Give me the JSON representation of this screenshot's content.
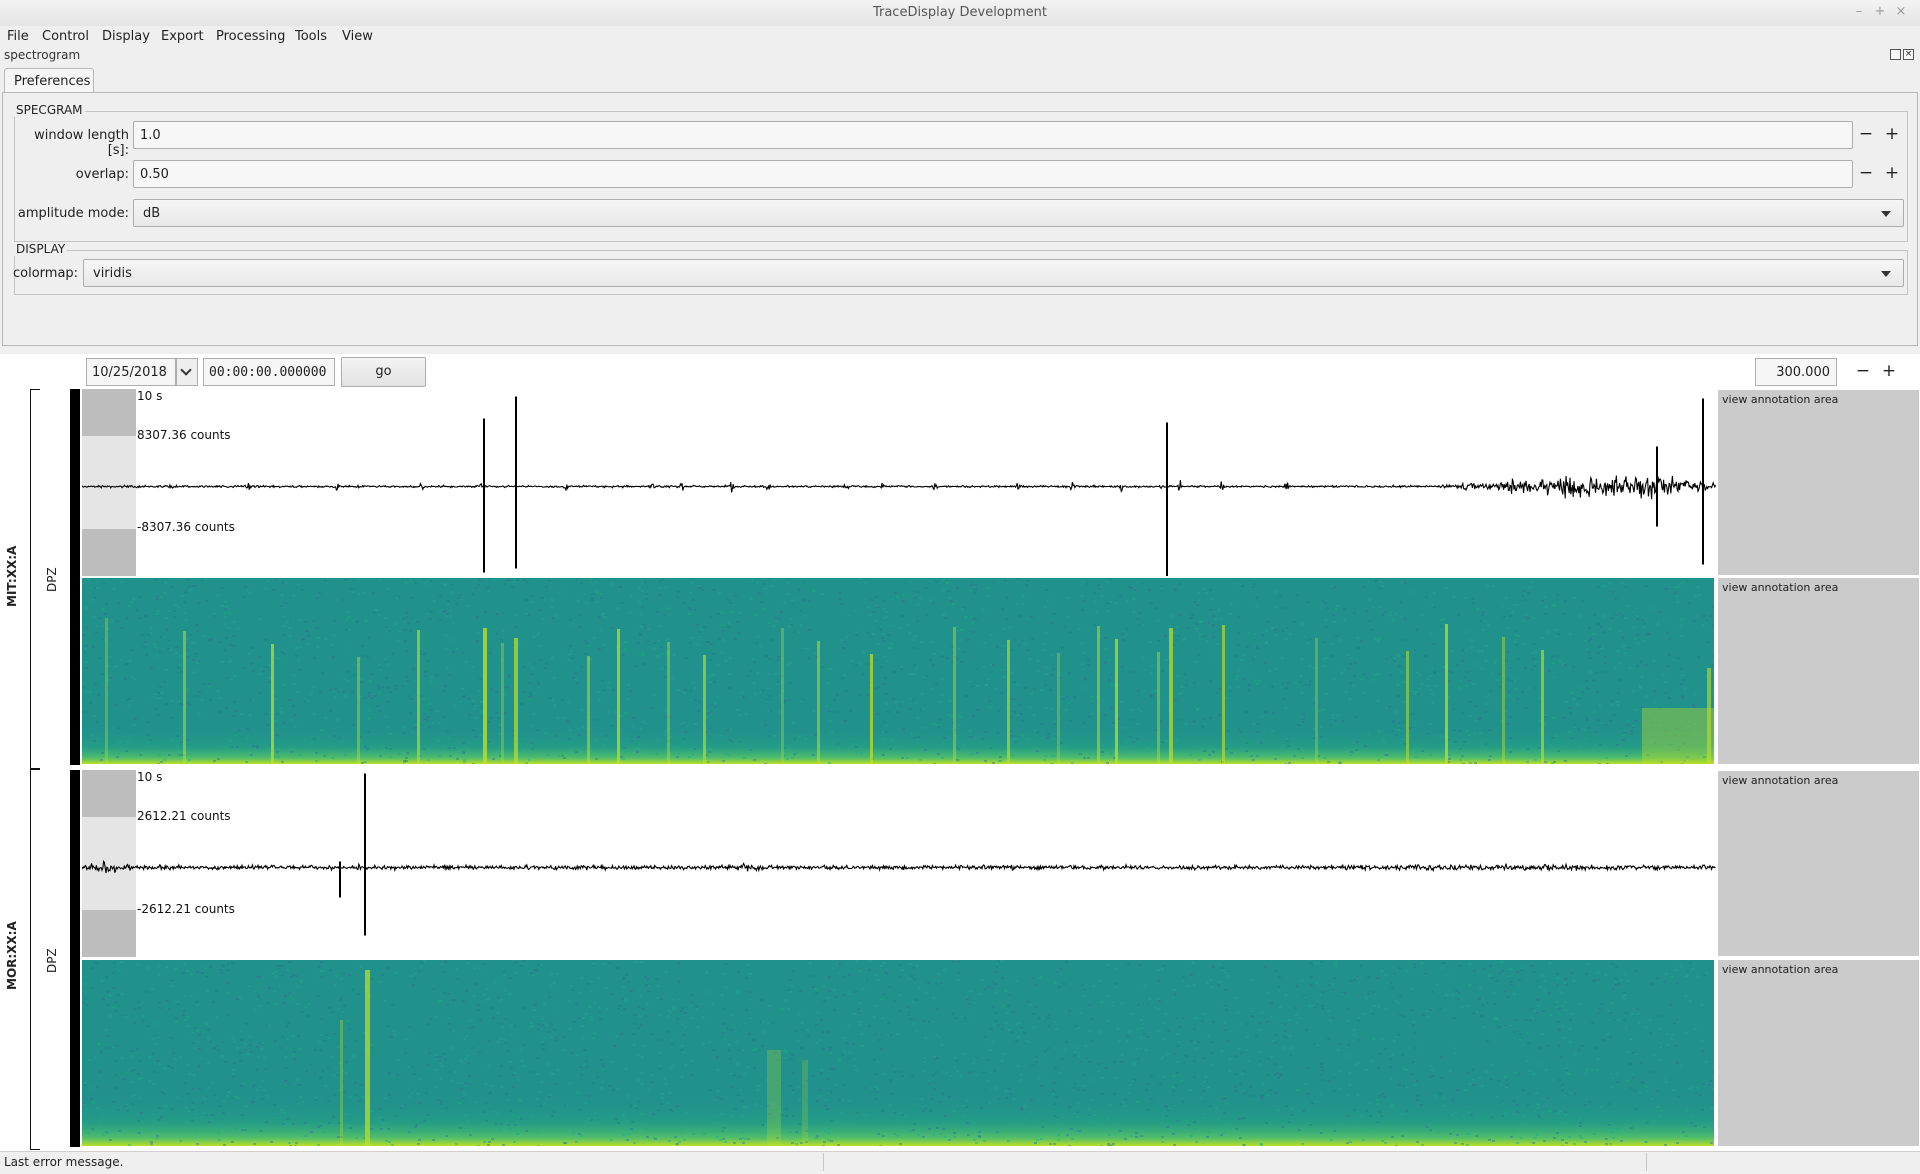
{
  "window": {
    "title": "TraceDisplay Development",
    "buttons": [
      "–",
      "+",
      "×"
    ]
  },
  "menu": [
    "File",
    "Control",
    "Display",
    "Export",
    "Processing",
    "Tools",
    "View"
  ],
  "dock": {
    "title": "spectrogram",
    "tab": "Preferences",
    "specgram_group": "SPECGRAM",
    "window_length": {
      "label": "window length [s]:",
      "value": "1.0"
    },
    "overlap": {
      "label": "overlap:",
      "value": "0.50"
    },
    "amplitude_mode": {
      "label": "amplitude mode:",
      "value": "dB"
    },
    "display_group": "DISPLAY",
    "colormap": {
      "label": "colormap:",
      "value": "viridis"
    },
    "spin_minus": "−",
    "spin_plus": "+"
  },
  "toolbar": {
    "date": "10/25/2018",
    "time": "00:00:00.000000",
    "go_label": "go",
    "duration": "300.000"
  },
  "stations": [
    {
      "name": "MIT:XX:A",
      "channel": "DPZ",
      "time_scale": "10 s",
      "amp_max": "8307.36 counts",
      "amp_min": "-8307.36 counts",
      "annotation_trace": "view annotation area",
      "annotation_spec": "view annotation area"
    },
    {
      "name": "MOR:XX:A",
      "channel": "DPZ",
      "time_scale": "10 s",
      "amp_max": "2612.21 counts",
      "amp_min": "-2612.21 counts",
      "annotation_trace": "view annotation area",
      "annotation_spec": "view annotation area"
    }
  ],
  "status": {
    "message": "Last error message."
  },
  "colors": {
    "viridis_base": "#21918c",
    "viridis_high": "#bddf26",
    "trace": "#000000"
  }
}
